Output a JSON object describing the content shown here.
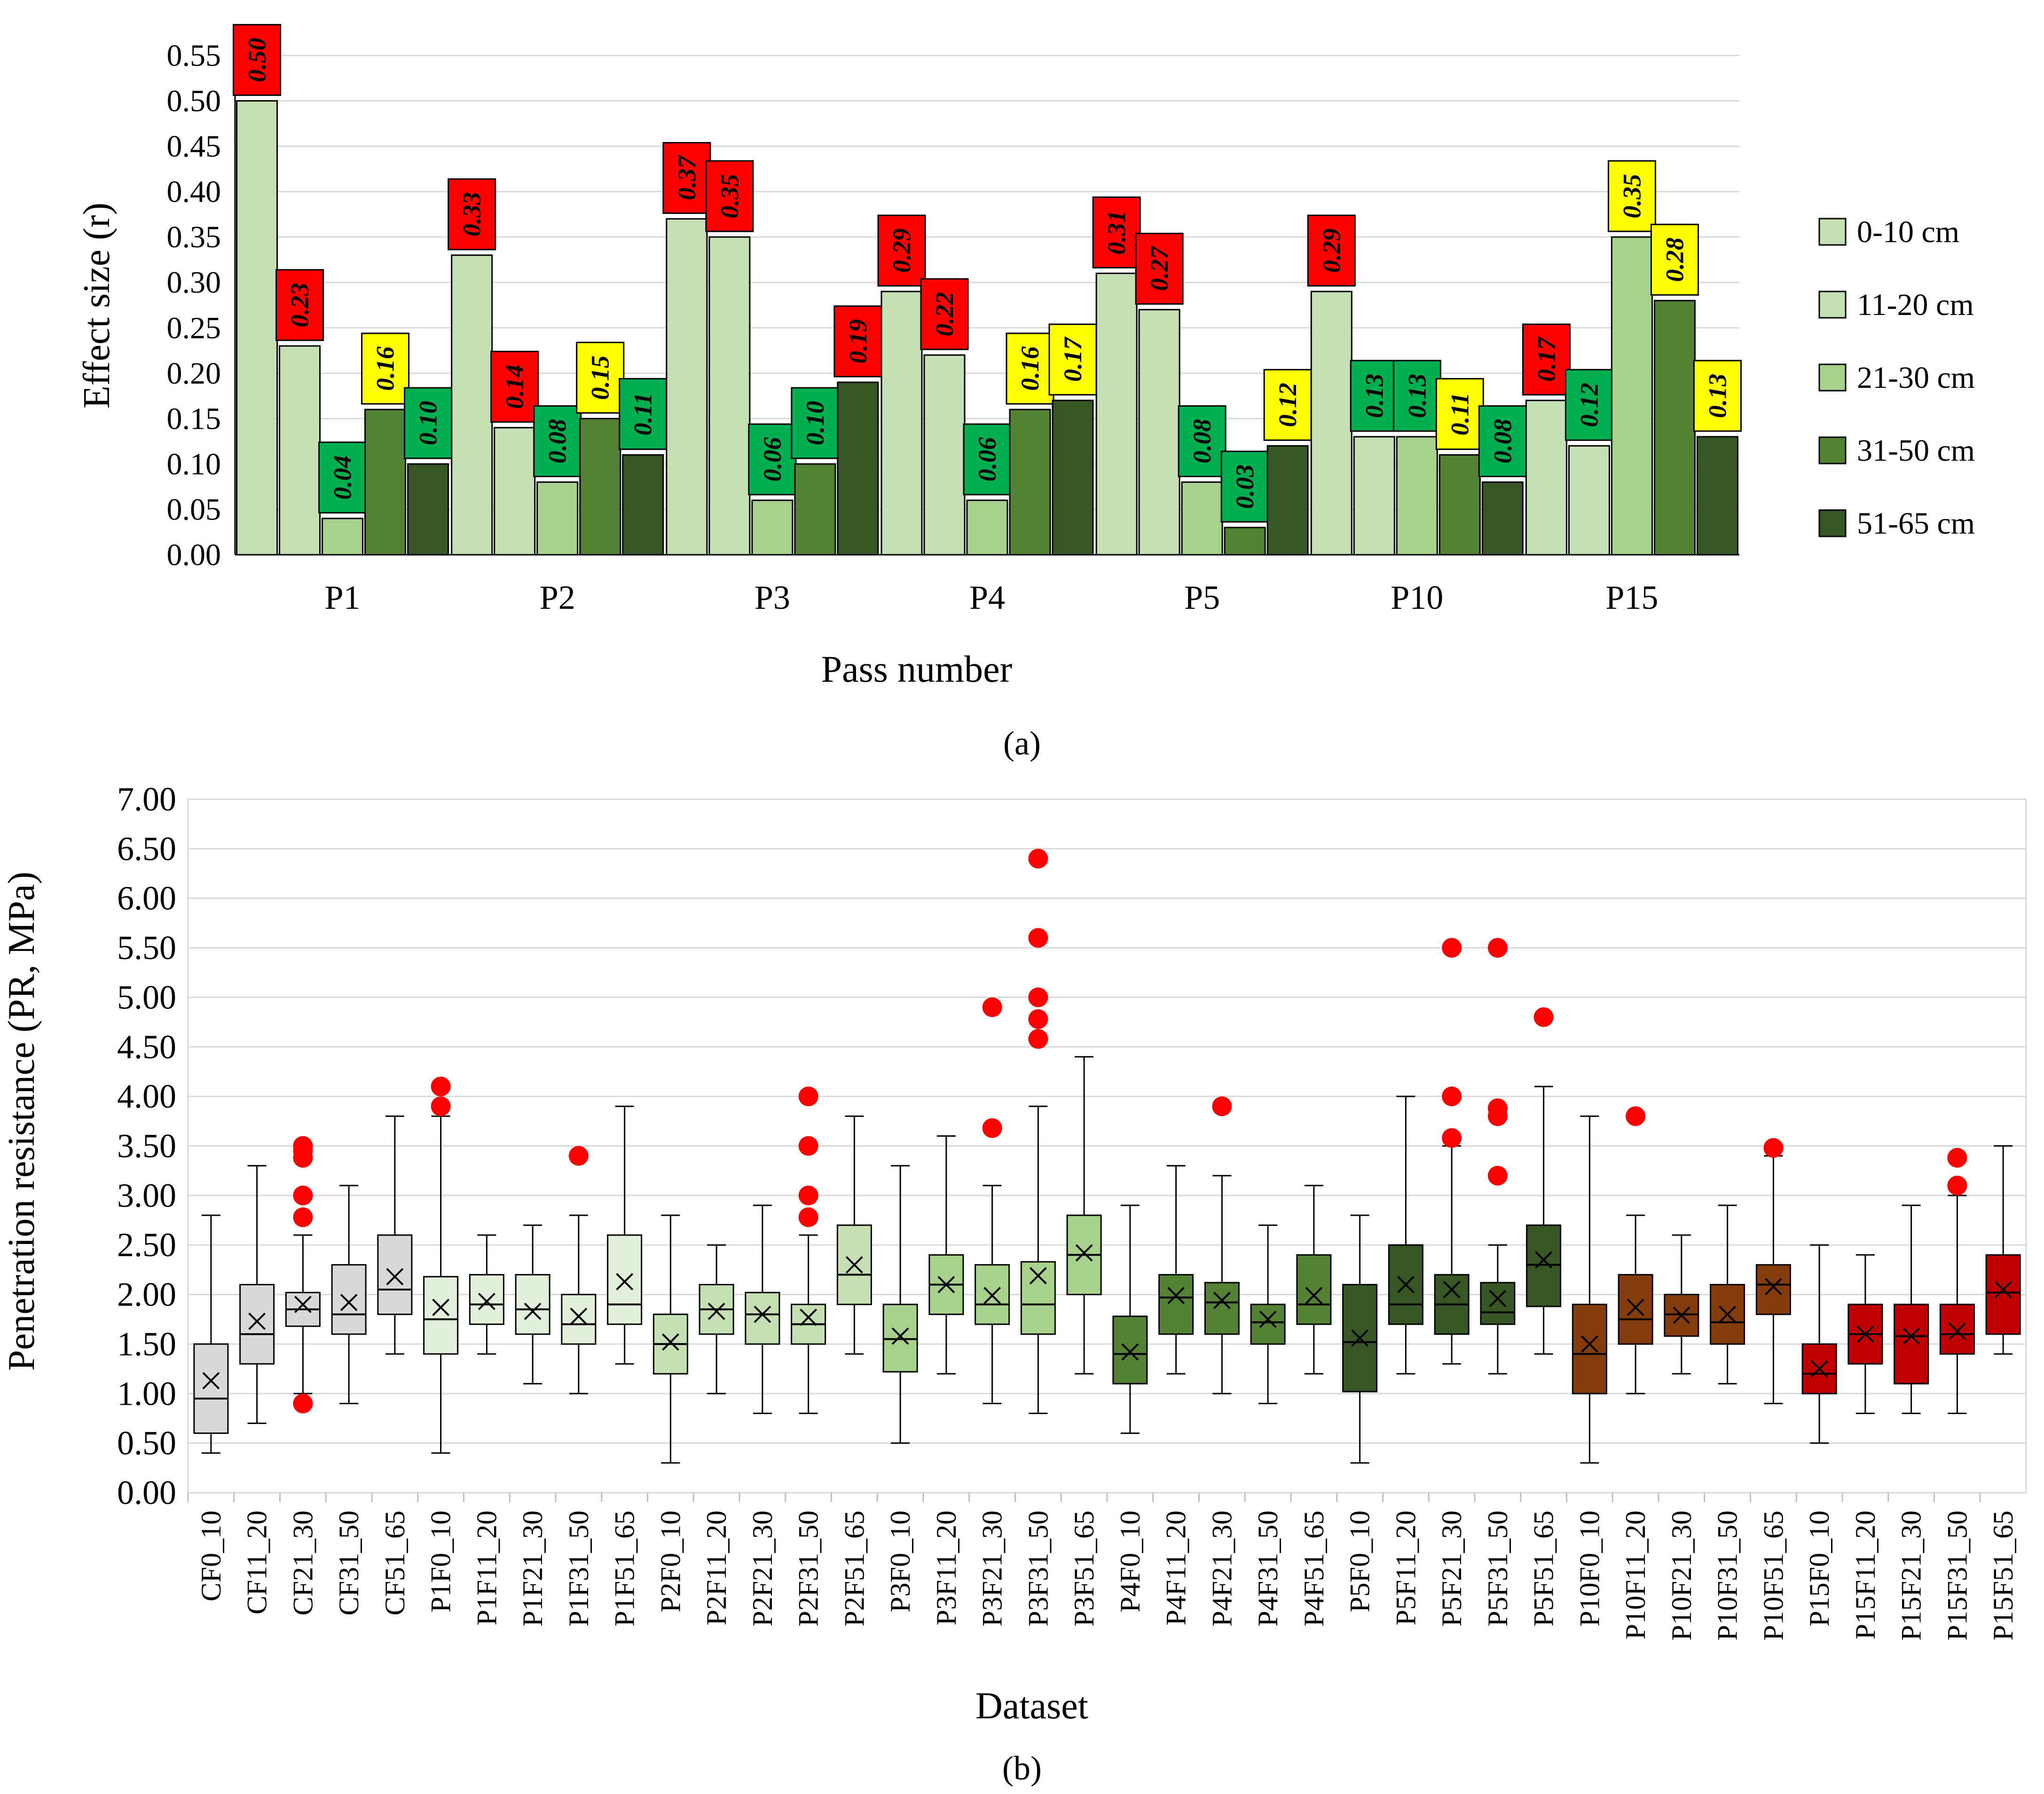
{
  "chart_data": [
    {
      "type": "bar",
      "title": "",
      "xlabel": "Pass number",
      "ylabel": "Effect size (r)",
      "ylim": [
        0,
        0.55
      ],
      "yticks": [
        "0.00",
        "0.05",
        "0.10",
        "0.15",
        "0.20",
        "0.25",
        "0.30",
        "0.35",
        "0.40",
        "0.45",
        "0.50",
        "0.55"
      ],
      "categories": [
        "P1",
        "P2",
        "P3",
        "P4",
        "P5",
        "P10",
        "P15"
      ],
      "legend_position": "right",
      "series": [
        {
          "name": "0-10 cm",
          "color": "#c6e0b4",
          "values": [
            0.5,
            0.33,
            0.37,
            0.29,
            0.31,
            0.29,
            0.17
          ]
        },
        {
          "name": "11-20 cm",
          "color": "#c6e0b4",
          "values": [
            0.23,
            0.14,
            0.35,
            0.22,
            0.27,
            0.13,
            0.12
          ]
        },
        {
          "name": "21-30 cm",
          "color": "#a9d18e",
          "values": [
            0.04,
            0.08,
            0.06,
            0.06,
            0.08,
            0.13,
            0.35
          ]
        },
        {
          "name": "31-50 cm",
          "color": "#548235",
          "values": [
            0.16,
            0.15,
            0.1,
            0.16,
            0.03,
            0.11,
            0.28
          ]
        },
        {
          "name": "51-65 cm",
          "color": "#375623",
          "values": [
            0.1,
            0.11,
            0.19,
            0.17,
            0.12,
            0.08,
            0.13
          ]
        }
      ],
      "labels": [
        [
          "0.50",
          "0.23",
          "0.04",
          "0.16",
          "0.10"
        ],
        [
          "0.33",
          "0.14",
          "0.08",
          "0.15",
          "0.11"
        ],
        [
          "0.37",
          "0.35",
          "0.06",
          "0.10",
          "0.19"
        ],
        [
          "0.29",
          "0.22",
          "0.06",
          "0.16",
          "0.17"
        ],
        [
          "0.31",
          "0.27",
          "0.08",
          "0.03",
          "0.12"
        ],
        [
          "0.29",
          "0.13",
          "0.13",
          "0.11",
          "0.08"
        ],
        [
          "0.17",
          "0.12",
          "0.35",
          "0.28",
          "0.13"
        ]
      ],
      "label_colors": [
        [
          "red",
          "red",
          "green",
          "yellow",
          "green"
        ],
        [
          "red",
          "red",
          "green",
          "yellow",
          "green"
        ],
        [
          "red",
          "red",
          "green",
          "green",
          "red"
        ],
        [
          "red",
          "red",
          "green",
          "yellow",
          "yellow"
        ],
        [
          "red",
          "red",
          "green",
          "green",
          "yellow"
        ],
        [
          "red",
          "green",
          "green",
          "yellow",
          "green"
        ],
        [
          "red",
          "green",
          "yellow",
          "yellow",
          "yellow"
        ]
      ],
      "label_palette": {
        "red": "#ff0000",
        "green": "#00b050",
        "yellow": "#ffff00"
      },
      "caption": "(a)"
    },
    {
      "type": "box",
      "title": "",
      "xlabel": "Dataset",
      "ylabel": "Penetration resistance (PR, MPa)",
      "ylim": [
        0,
        7
      ],
      "yticks": [
        "0.00",
        "0.50",
        "1.00",
        "1.50",
        "2.00",
        "2.50",
        "3.00",
        "3.50",
        "4.00",
        "4.50",
        "5.00",
        "5.50",
        "6.00",
        "6.50",
        "7.00"
      ],
      "outlier_color": "#ff0000",
      "datasets": [
        {
          "name": "CF0_10",
          "color": "#d9d9d9",
          "min": 0.4,
          "q1": 0.6,
          "median": 0.95,
          "q3": 1.5,
          "max": 2.8,
          "mean": 1.13,
          "outliers": []
        },
        {
          "name": "CF11_20",
          "color": "#d9d9d9",
          "min": 0.7,
          "q1": 1.3,
          "median": 1.6,
          "q3": 2.1,
          "max": 3.3,
          "mean": 1.73,
          "outliers": []
        },
        {
          "name": "CF21_30",
          "color": "#d9d9d9",
          "min": 1.0,
          "q1": 1.68,
          "median": 1.85,
          "q3": 2.02,
          "max": 2.6,
          "mean": 1.9,
          "outliers": [
            0.9,
            2.78,
            3.0,
            3.38,
            3.45,
            3.5
          ]
        },
        {
          "name": "CF31_50",
          "color": "#d9d9d9",
          "min": 0.9,
          "q1": 1.6,
          "median": 1.8,
          "q3": 2.3,
          "max": 3.1,
          "mean": 1.92,
          "outliers": []
        },
        {
          "name": "CF51_65",
          "color": "#d9d9d9",
          "min": 1.4,
          "q1": 1.8,
          "median": 2.05,
          "q3": 2.6,
          "max": 3.8,
          "mean": 2.18,
          "outliers": []
        },
        {
          "name": "P1F0_10",
          "color": "#e2efda",
          "min": 0.4,
          "q1": 1.4,
          "median": 1.75,
          "q3": 2.18,
          "max": 3.8,
          "mean": 1.87,
          "outliers": [
            3.9,
            4.1
          ]
        },
        {
          "name": "P1F11_20",
          "color": "#e2efda",
          "min": 1.4,
          "q1": 1.7,
          "median": 1.9,
          "q3": 2.2,
          "max": 2.6,
          "mean": 1.93,
          "outliers": []
        },
        {
          "name": "P1F21_30",
          "color": "#e2efda",
          "min": 1.1,
          "q1": 1.6,
          "median": 1.85,
          "q3": 2.2,
          "max": 2.7,
          "mean": 1.83,
          "outliers": []
        },
        {
          "name": "P1F31_50",
          "color": "#e2efda",
          "min": 1.0,
          "q1": 1.5,
          "median": 1.7,
          "q3": 2.0,
          "max": 2.8,
          "mean": 1.78,
          "outliers": [
            3.4
          ]
        },
        {
          "name": "P1F51_65",
          "color": "#e2efda",
          "min": 1.3,
          "q1": 1.7,
          "median": 1.9,
          "q3": 2.6,
          "max": 3.9,
          "mean": 2.13,
          "outliers": []
        },
        {
          "name": "P2F0_10",
          "color": "#c6e0b4",
          "min": 0.3,
          "q1": 1.2,
          "median": 1.5,
          "q3": 1.8,
          "max": 2.8,
          "mean": 1.52,
          "outliers": []
        },
        {
          "name": "P2F11_20",
          "color": "#c6e0b4",
          "min": 1.0,
          "q1": 1.6,
          "median": 1.85,
          "q3": 2.1,
          "max": 2.5,
          "mean": 1.83,
          "outliers": []
        },
        {
          "name": "P2F21_30",
          "color": "#c6e0b4",
          "min": 0.8,
          "q1": 1.5,
          "median": 1.8,
          "q3": 2.02,
          "max": 2.9,
          "mean": 1.8,
          "outliers": []
        },
        {
          "name": "P2F31_50",
          "color": "#c6e0b4",
          "min": 0.8,
          "q1": 1.5,
          "median": 1.7,
          "q3": 1.9,
          "max": 2.6,
          "mean": 1.77,
          "outliers": [
            2.78,
            3.0,
            3.5,
            4.0
          ]
        },
        {
          "name": "P2F51_65",
          "color": "#c6e0b4",
          "min": 1.4,
          "q1": 1.9,
          "median": 2.2,
          "q3": 2.7,
          "max": 3.8,
          "mean": 2.3,
          "outliers": []
        },
        {
          "name": "P3F0_10",
          "color": "#a9d18e",
          "min": 0.5,
          "q1": 1.22,
          "median": 1.55,
          "q3": 1.9,
          "max": 3.3,
          "mean": 1.58,
          "outliers": []
        },
        {
          "name": "P3F11_20",
          "color": "#a9d18e",
          "min": 1.2,
          "q1": 1.8,
          "median": 2.1,
          "q3": 2.4,
          "max": 3.6,
          "mean": 2.1,
          "outliers": []
        },
        {
          "name": "P3F21_30",
          "color": "#a9d18e",
          "min": 0.9,
          "q1": 1.7,
          "median": 1.9,
          "q3": 2.3,
          "max": 3.1,
          "mean": 1.99,
          "outliers": [
            3.68,
            4.9
          ]
        },
        {
          "name": "P3F31_50",
          "color": "#a9d18e",
          "min": 0.8,
          "q1": 1.6,
          "median": 1.9,
          "q3": 2.33,
          "max": 3.9,
          "mean": 2.19,
          "outliers": [
            4.58,
            4.78,
            5.0,
            5.6,
            6.4
          ]
        },
        {
          "name": "P3F51_65",
          "color": "#a9d18e",
          "min": 1.2,
          "q1": 2.0,
          "median": 2.4,
          "q3": 2.8,
          "max": 4.4,
          "mean": 2.42,
          "outliers": []
        },
        {
          "name": "P4F0_10",
          "color": "#548235",
          "min": 0.6,
          "q1": 1.1,
          "median": 1.4,
          "q3": 1.78,
          "max": 2.9,
          "mean": 1.42,
          "outliers": []
        },
        {
          "name": "P4F11_20",
          "color": "#548235",
          "min": 1.2,
          "q1": 1.6,
          "median": 1.97,
          "q3": 2.2,
          "max": 3.3,
          "mean": 1.99,
          "outliers": []
        },
        {
          "name": "P4F21_30",
          "color": "#548235",
          "min": 1.0,
          "q1": 1.6,
          "median": 1.92,
          "q3": 2.12,
          "max": 3.2,
          "mean": 1.94,
          "outliers": [
            3.9
          ]
        },
        {
          "name": "P4F31_50",
          "color": "#548235",
          "min": 0.9,
          "q1": 1.5,
          "median": 1.72,
          "q3": 1.9,
          "max": 2.7,
          "mean": 1.75,
          "outliers": []
        },
        {
          "name": "P4F51_65",
          "color": "#548235",
          "min": 1.2,
          "q1": 1.7,
          "median": 1.9,
          "q3": 2.4,
          "max": 3.1,
          "mean": 1.99,
          "outliers": []
        },
        {
          "name": "P5F0_10",
          "color": "#375623",
          "min": 0.3,
          "q1": 1.02,
          "median": 1.52,
          "q3": 2.1,
          "max": 2.8,
          "mean": 1.56,
          "outliers": []
        },
        {
          "name": "P5F11_20",
          "color": "#375623",
          "min": 1.2,
          "q1": 1.7,
          "median": 1.9,
          "q3": 2.5,
          "max": 4.0,
          "mean": 2.1,
          "outliers": []
        },
        {
          "name": "P5F21_30",
          "color": "#375623",
          "min": 1.3,
          "q1": 1.6,
          "median": 1.9,
          "q3": 2.2,
          "max": 3.5,
          "mean": 2.05,
          "outliers": [
            3.58,
            4.0,
            5.5
          ]
        },
        {
          "name": "P5F31_50",
          "color": "#375623",
          "min": 1.2,
          "q1": 1.7,
          "median": 1.82,
          "q3": 2.12,
          "max": 2.5,
          "mean": 1.96,
          "outliers": [
            3.2,
            3.8,
            3.88,
            5.5
          ]
        },
        {
          "name": "P5F51_65",
          "color": "#375623",
          "min": 1.4,
          "q1": 1.88,
          "median": 2.3,
          "q3": 2.7,
          "max": 4.1,
          "mean": 2.35,
          "outliers": [
            4.8
          ]
        },
        {
          "name": "P10F0_10",
          "color": "#843c0c",
          "min": 0.3,
          "q1": 1.0,
          "median": 1.4,
          "q3": 1.9,
          "max": 3.8,
          "mean": 1.5,
          "outliers": []
        },
        {
          "name": "P10F11_20",
          "color": "#843c0c",
          "min": 1.0,
          "q1": 1.5,
          "median": 1.75,
          "q3": 2.2,
          "max": 2.8,
          "mean": 1.87,
          "outliers": [
            3.8
          ]
        },
        {
          "name": "P10F21_30",
          "color": "#843c0c",
          "min": 1.2,
          "q1": 1.58,
          "median": 1.8,
          "q3": 2.0,
          "max": 2.6,
          "mean": 1.79,
          "outliers": []
        },
        {
          "name": "P10F31_50",
          "color": "#843c0c",
          "min": 1.1,
          "q1": 1.5,
          "median": 1.72,
          "q3": 2.1,
          "max": 2.9,
          "mean": 1.8,
          "outliers": []
        },
        {
          "name": "P10F51_65",
          "color": "#843c0c",
          "min": 0.9,
          "q1": 1.8,
          "median": 2.1,
          "q3": 2.3,
          "max": 3.4,
          "mean": 2.08,
          "outliers": [
            3.48
          ]
        },
        {
          "name": "P15F0_10",
          "color": "#c00000",
          "min": 0.5,
          "q1": 1.0,
          "median": 1.2,
          "q3": 1.5,
          "max": 2.5,
          "mean": 1.25,
          "outliers": []
        },
        {
          "name": "P15F11_20",
          "color": "#c00000",
          "min": 0.8,
          "q1": 1.3,
          "median": 1.6,
          "q3": 1.9,
          "max": 2.4,
          "mean": 1.6,
          "outliers": []
        },
        {
          "name": "P15F21_30",
          "color": "#c00000",
          "min": 0.8,
          "q1": 1.1,
          "median": 1.58,
          "q3": 1.9,
          "max": 2.9,
          "mean": 1.58,
          "outliers": []
        },
        {
          "name": "P15F31_50",
          "color": "#c00000",
          "min": 0.8,
          "q1": 1.4,
          "median": 1.6,
          "q3": 1.9,
          "max": 3.0,
          "mean": 1.63,
          "outliers": [
            3.1,
            3.38
          ]
        },
        {
          "name": "P15F51_65",
          "color": "#c00000",
          "min": 1.4,
          "q1": 1.6,
          "median": 2.02,
          "q3": 2.4,
          "max": 3.5,
          "mean": 2.05,
          "outliers": []
        }
      ],
      "caption": "(b)"
    }
  ]
}
